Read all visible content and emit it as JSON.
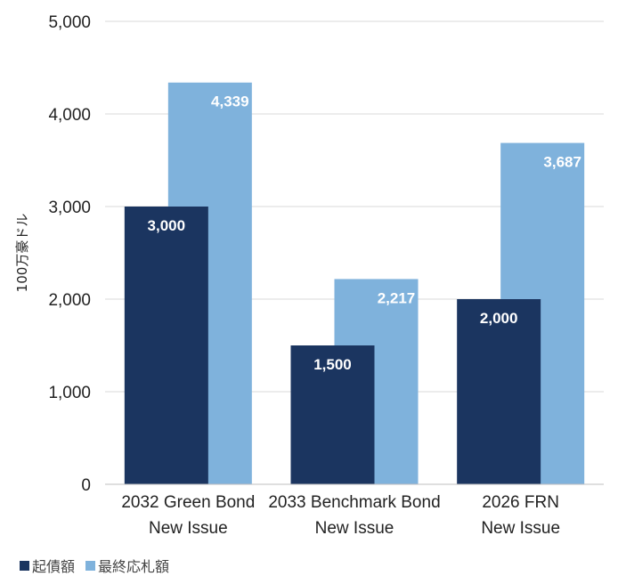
{
  "chart_data": {
    "type": "bar",
    "title": "",
    "xlabel": "",
    "ylabel": "100万豪ドル",
    "ylim": [
      0,
      5000
    ],
    "yticks": [
      0,
      1000,
      2000,
      3000,
      4000,
      5000
    ],
    "ytick_labels": [
      "0",
      "1,000",
      "2,000",
      "3,000",
      "4,000",
      "5,000"
    ],
    "grid": true,
    "legend_position": "bottom-left",
    "categories": [
      [
        "2032 Green Bond",
        "New Issue"
      ],
      [
        "2033 Benchmark Bond",
        "New Issue"
      ],
      [
        "2026 FRN",
        "New Issue"
      ]
    ],
    "series": [
      {
        "name": "起債額",
        "color": "#1b3560",
        "values": [
          3000,
          1500,
          2000
        ],
        "labels": [
          "3,000",
          "1,500",
          "2,000"
        ]
      },
      {
        "name": "最終応札額",
        "color": "#7fb2dc",
        "values": [
          4339,
          2217,
          3687
        ],
        "labels": [
          "4,339",
          "2,217",
          "3,687"
        ]
      }
    ]
  }
}
